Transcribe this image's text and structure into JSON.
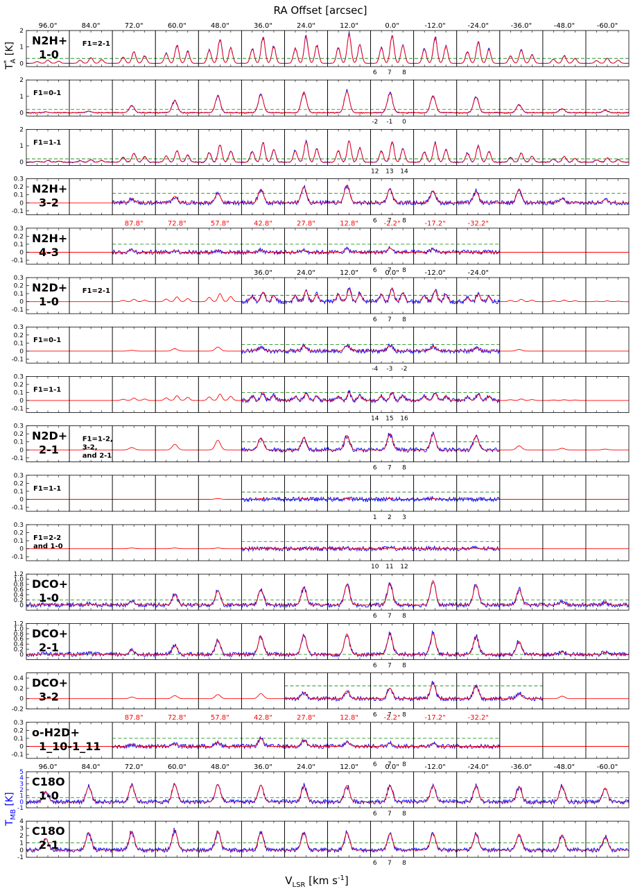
{
  "figure": {
    "title": "RA Offset [arcsec]",
    "xlabel_main": "V",
    "xlabel_sub": "LSR",
    "xlabel_unit": " [km s",
    "xlabel_sup": "-1",
    "xlabel_end": "]",
    "ylabel_ta_main": "T",
    "ylabel_ta_sup": "*",
    "ylabel_ta_sub": "A",
    "ylabel_ta_unit": " [K]",
    "ylabel_tmb_main": "T",
    "ylabel_tmb_sub": "MB",
    "ylabel_tmb_unit": " [K]",
    "colors": {
      "observed": "#0000ff",
      "model": "#ff0000",
      "threshold": "#008000",
      "offset_red": "#ff0000",
      "tmb_label": "#0000ff"
    }
  },
  "chart_data": {
    "type": "line",
    "x_unit": "km s-1",
    "offsets_full": [
      "96.0\"",
      "84.0\"",
      "72.0\"",
      "60.0\"",
      "48.0\"",
      "36.0\"",
      "24.0\"",
      "12.0\"",
      "0.0\"",
      "-12.0\"",
      "-24.0\"",
      "-36.0\"",
      "-48.0\"",
      "-60.0\""
    ],
    "offsets_shifted": [
      "87.8\"",
      "72.8\"",
      "57.8\"",
      "42.8\"",
      "27.8\"",
      "12.8\"",
      "-2.2\"",
      "-17.2\"",
      "-32.2\""
    ],
    "offsets_n2d": [
      "36.0\"",
      "24.0\"",
      "12.0\"",
      "0.0\"",
      "-12.0\"",
      "-24.0\""
    ],
    "rows": [
      {
        "label": [
          "N2H+",
          "1-0"
        ],
        "sub": "F1=2-1",
        "ylim": [
          -0.2,
          2
        ],
        "yticks": [
          "2",
          "1",
          "0"
        ],
        "peaks": [
          0.2,
          0.35,
          0.7,
          1.1,
          1.45,
          1.6,
          1.65,
          1.75,
          1.7,
          1.6,
          1.3,
          0.8,
          0.45,
          0.3
        ],
        "vel_ticks": [
          "6",
          "7",
          "8"
        ],
        "obs_range": [
          0,
          13
        ],
        "threshold": 0.3
      },
      {
        "label": [],
        "sub": "F1=0-1",
        "ylim": [
          -0.2,
          2
        ],
        "yticks": [
          "2",
          "1",
          "0"
        ],
        "peaks": [
          0.05,
          0.1,
          0.45,
          0.75,
          1.0,
          1.1,
          1.25,
          1.3,
          1.2,
          1.05,
          0.95,
          0.5,
          0.25,
          0.15
        ],
        "vel_ticks": [
          "-2",
          "-1",
          "0"
        ],
        "obs_range": [
          0,
          13
        ],
        "threshold": 0.2
      },
      {
        "label": [],
        "sub": "F1=1-1",
        "ylim": [
          -0.2,
          2
        ],
        "yticks": [
          "2",
          "1",
          "0"
        ],
        "peaks": [
          0.1,
          0.15,
          0.55,
          0.7,
          1.05,
          1.2,
          1.25,
          1.3,
          1.25,
          1.15,
          1.0,
          0.55,
          0.35,
          0.25
        ],
        "vel_ticks": [
          "12",
          "13",
          "14"
        ],
        "obs_range": [
          0,
          13
        ],
        "threshold": 0.2
      },
      {
        "label": [
          "N2H+",
          "3-2"
        ],
        "sub": "",
        "ylim": [
          -0.15,
          0.3
        ],
        "yticks": [
          "0.3",
          "0.2",
          "0.1",
          "0",
          "-0.1"
        ],
        "peaks": [
          0.0,
          0.0,
          0.05,
          0.08,
          0.12,
          0.17,
          0.2,
          0.22,
          0.17,
          0.15,
          0.14,
          0.17,
          0.05,
          0.04
        ],
        "vel_ticks": [
          "6",
          "7",
          "8"
        ],
        "obs_range": [
          2,
          13
        ],
        "threshold": 0.12
      },
      {
        "label": [
          "N2H+",
          "4-3"
        ],
        "sub": "",
        "ylim": [
          -0.15,
          0.3
        ],
        "yticks": [
          "0.3",
          "0.2",
          "0.1",
          "0",
          "-0.1"
        ],
        "peaks": [
          0.0,
          0.0,
          0.03,
          0.02,
          0.02,
          0.03,
          0.03,
          0.04,
          0.05,
          0.04,
          0.0,
          0.0,
          0.0,
          0.0
        ],
        "vel_ticks": [
          "6",
          "7",
          "8"
        ],
        "obs_range": [
          2,
          10
        ],
        "threshold": 0.1,
        "shifted": true
      },
      {
        "label": [
          "N2D+",
          "1-0"
        ],
        "sub": "F1=2-1",
        "ylim": [
          -0.15,
          0.3
        ],
        "yticks": [
          "0.3",
          "0.2",
          "0.1",
          "0",
          "-0.1"
        ],
        "peaks": [
          0.0,
          0.0,
          0.03,
          0.06,
          0.1,
          0.12,
          0.14,
          0.16,
          0.17,
          0.14,
          0.1,
          0.03,
          0.02,
          0.01
        ],
        "vel_ticks": [
          "6",
          "7",
          "8"
        ],
        "obs_range": [
          5,
          10
        ],
        "threshold": 0.08,
        "n2d": true
      },
      {
        "label": [],
        "sub": "F1=0-1",
        "ylim": [
          -0.15,
          0.3
        ],
        "yticks": [
          "0.3",
          "0.2",
          "0.1",
          "0",
          "-0.1"
        ],
        "peaks": [
          0.0,
          0.0,
          0.01,
          0.03,
          0.05,
          0.05,
          0.06,
          0.07,
          0.07,
          0.06,
          0.04,
          0.02,
          0.0,
          0.0
        ],
        "vel_ticks": [
          "-4",
          "-3",
          "-2"
        ],
        "obs_range": [
          5,
          10
        ],
        "threshold": 0.08
      },
      {
        "label": [],
        "sub": "F1=1-1",
        "ylim": [
          -0.15,
          0.3
        ],
        "yticks": [
          "0.3",
          "0.2",
          "0.1",
          "0",
          "-0.1"
        ],
        "peaks": [
          0.0,
          0.0,
          0.03,
          0.06,
          0.08,
          0.1,
          0.09,
          0.1,
          0.1,
          0.09,
          0.08,
          0.02,
          0.01,
          0.0
        ],
        "vel_ticks": [
          "14",
          "15",
          "16"
        ],
        "obs_range": [
          5,
          10
        ],
        "threshold": 0.1
      },
      {
        "label": [
          "N2D+",
          "2-1"
        ],
        "sub": "F1=1-2, 3-2, and 2-1",
        "ylim": [
          -0.15,
          0.3
        ],
        "yticks": [
          "0.3",
          "0.2",
          "0.1",
          "0",
          "-0.1"
        ],
        "peaks": [
          0.0,
          0.01,
          0.03,
          0.07,
          0.12,
          0.15,
          0.15,
          0.18,
          0.2,
          0.2,
          0.17,
          0.05,
          0.02,
          0.01
        ],
        "vel_ticks": [
          "6",
          "7",
          "8"
        ],
        "obs_range": [
          5,
          10
        ],
        "threshold": 0.1
      },
      {
        "label": [],
        "sub": "F1=1-1",
        "ylim": [
          -0.15,
          0.3
        ],
        "yticks": [
          "0.3",
          "0.2",
          "0.1",
          "0",
          "-0.1"
        ],
        "peaks": [
          0.0,
          0.0,
          0.0,
          0.0,
          0.01,
          0.01,
          0.01,
          0.01,
          0.01,
          0.01,
          0.0,
          0.0,
          0.0,
          0.0
        ],
        "vel_ticks": [
          "1",
          "2",
          "3"
        ],
        "obs_range": [
          5,
          10
        ],
        "threshold": 0.09
      },
      {
        "label": [],
        "sub": "F1=2-2 and 1-0",
        "ylim": [
          -0.15,
          0.3
        ],
        "yticks": [
          "0.3",
          "0.2",
          "0.1",
          "0",
          "-0.1"
        ],
        "peaks": [
          0.0,
          0.0,
          0.01,
          0.01,
          0.01,
          0.01,
          0.01,
          0.01,
          0.01,
          0.01,
          0.01,
          0.0,
          0.0,
          0.0
        ],
        "vel_ticks": [
          "10",
          "11",
          "12"
        ],
        "obs_range": [
          5,
          10
        ],
        "threshold": 0.09
      },
      {
        "label": [
          "DCO+",
          "1-0"
        ],
        "sub": "",
        "ylim": [
          -0.2,
          1.2
        ],
        "yticks": [
          "1.2",
          "1.0",
          "0.8",
          "0.6",
          "0.4",
          "0.2",
          "0"
        ],
        "peaks": [
          0.05,
          0.05,
          0.15,
          0.4,
          0.55,
          0.6,
          0.7,
          0.8,
          0.85,
          0.95,
          0.8,
          0.6,
          0.15,
          0.1
        ],
        "vel_ticks": [
          "6",
          "7",
          "8"
        ],
        "obs_range": [
          0,
          13
        ],
        "threshold": 0.2
      },
      {
        "label": [
          "DCO+",
          "2-1"
        ],
        "sub": "",
        "ylim": [
          -0.2,
          1.2
        ],
        "yticks": [
          "1.2",
          "1.0",
          "0.8",
          "0.6",
          "0.4",
          "0.2",
          "0"
        ],
        "peaks": [
          0.05,
          0.05,
          0.15,
          0.35,
          0.55,
          0.7,
          0.75,
          0.8,
          0.8,
          0.8,
          0.7,
          0.5,
          0.1,
          0.08
        ],
        "vel_ticks": [
          "6",
          "7",
          "8"
        ],
        "obs_range": [
          0,
          13
        ],
        "threshold": 0.0
      },
      {
        "label": [
          "DCO+",
          "3-2"
        ],
        "sub": "",
        "ylim": [
          -0.2,
          0.5
        ],
        "yticks": [
          "0.4",
          "0.2",
          "0",
          "-0.2"
        ],
        "peaks": [
          0.0,
          0.0,
          0.03,
          0.06,
          0.08,
          0.1,
          0.12,
          0.15,
          0.2,
          0.3,
          0.25,
          0.1,
          0.05,
          0.0
        ],
        "vel_ticks": [
          "6",
          "7",
          "8"
        ],
        "obs_range": [
          6,
          11
        ],
        "threshold": 0.25
      },
      {
        "label": [
          "o-H2D+",
          "1_10-1_11"
        ],
        "sub": "",
        "ylim": [
          -0.15,
          0.3
        ],
        "yticks": [
          "0.3",
          "0.2",
          "0.1",
          "0",
          "-0.1"
        ],
        "peaks": [
          0.0,
          0.0,
          0.02,
          0.03,
          0.05,
          0.1,
          0.08,
          0.05,
          0.04,
          0.04,
          0.0,
          0.0,
          0.0,
          0.0
        ],
        "vel_ticks": [
          "6",
          "7",
          "8"
        ],
        "obs_range": [
          2,
          10
        ],
        "threshold": 0.1,
        "shifted": true
      },
      {
        "label": [
          "C18O",
          "1-0"
        ],
        "sub": "",
        "ylim": [
          -1,
          5
        ],
        "yticks": [
          "5",
          "4",
          "3",
          "2",
          "1",
          "0",
          "-1"
        ],
        "peaks": [
          1.7,
          2.5,
          2.8,
          2.9,
          2.9,
          2.8,
          2.6,
          2.7,
          2.7,
          2.7,
          2.6,
          2.5,
          2.6,
          2.3
        ],
        "vel_ticks": [
          "6",
          "7",
          "8"
        ],
        "obs_range": [
          0,
          13
        ],
        "threshold": 0.7,
        "tmb": true
      },
      {
        "label": [
          "C18O",
          "2-1"
        ],
        "sub": "",
        "ylim": [
          -1,
          4
        ],
        "yticks": [
          "4",
          "3",
          "2",
          "1",
          "0",
          "-1"
        ],
        "peaks": [
          1.6,
          2.4,
          2.6,
          2.7,
          2.6,
          2.4,
          2.4,
          2.4,
          2.3,
          2.3,
          2.2,
          2.2,
          2.1,
          1.8
        ],
        "vel_ticks": [
          "6",
          "7",
          "8"
        ],
        "obs_range": [
          0,
          13
        ],
        "threshold": 1.0
      }
    ]
  }
}
